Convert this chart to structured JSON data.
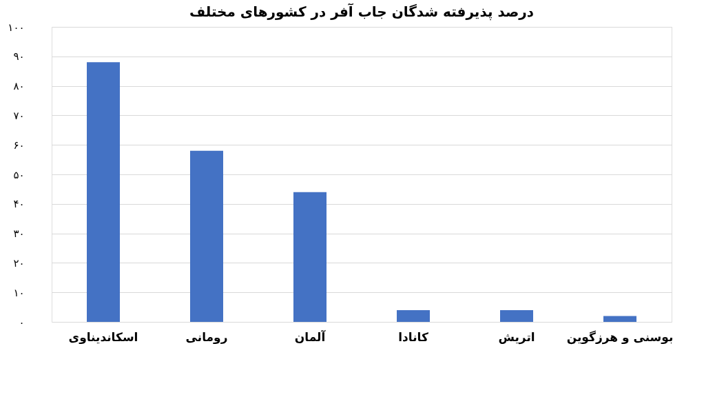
{
  "chart_data": {
    "type": "bar",
    "title": "درصد پذیرفته شدگان جاب آفر در کشورهای مختلف",
    "categories": [
      "اسکاندیناوی",
      "رومانی",
      "آلمان",
      "کانادا",
      "اتریش",
      "بوسنی و هرزگوین"
    ],
    "values": [
      88,
      58,
      44,
      4,
      4,
      2
    ],
    "color": "#4472c4",
    "ylim": [
      0,
      100
    ],
    "yticks": [
      {
        "value": 0,
        "label": "۰"
      },
      {
        "value": 10,
        "label": "۱۰"
      },
      {
        "value": 20,
        "label": "۲۰"
      },
      {
        "value": 30,
        "label": "۳۰"
      },
      {
        "value": 40,
        "label": "۴۰"
      },
      {
        "value": 50,
        "label": "۵۰"
      },
      {
        "value": 60,
        "label": "۶۰"
      },
      {
        "value": 70,
        "label": "۷۰"
      },
      {
        "value": 80,
        "label": "۸۰"
      },
      {
        "value": 90,
        "label": "۹۰"
      },
      {
        "value": 100,
        "label": "۱۰۰"
      }
    ],
    "grid": "y"
  }
}
